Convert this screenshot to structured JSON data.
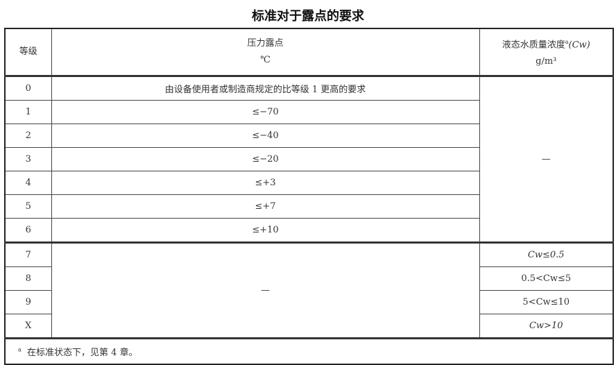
{
  "title": "标准对于露点的要求",
  "table": {
    "headers": {
      "grade": "等级",
      "dew_point": "压力露点",
      "dew_point_unit": "℃",
      "water": "液态水质量浓度",
      "water_note_mark": "a",
      "water_symbol": "(Cw)",
      "water_unit": "g/m³"
    },
    "rows": [
      {
        "grade": "0",
        "dew_point": "由设备使用者或制造商规定的比等级 1 更高的要求"
      },
      {
        "grade": "1",
        "dew_point": "≤−70"
      },
      {
        "grade": "2",
        "dew_point": "≤−40"
      },
      {
        "grade": "3",
        "dew_point": "≤−20"
      },
      {
        "grade": "4",
        "dew_point": "≤+3"
      },
      {
        "grade": "5",
        "dew_point": "≤+7"
      },
      {
        "grade": "6",
        "dew_point": "≤+10"
      },
      {
        "grade": "7",
        "water": "Cw≤0.5"
      },
      {
        "grade": "8",
        "water": "0.5<Cw≤5"
      },
      {
        "grade": "9",
        "water": "5<Cw≤10"
      },
      {
        "grade": "X",
        "water": "Cw>10"
      }
    ],
    "water_merged_0_6": "—",
    "dew_point_merged_7_x": "—",
    "footnote_mark": "a",
    "footnote": "在标准状态下，见第 4 章。"
  }
}
